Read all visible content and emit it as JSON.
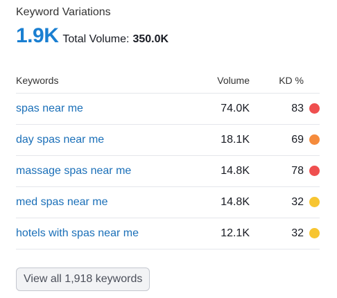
{
  "widget": {
    "title": "Keyword Variations",
    "count": "1.9K",
    "total_label": "Total Volume:",
    "total_value": "350.0K"
  },
  "table": {
    "headers": {
      "keyword": "Keywords",
      "volume": "Volume",
      "kd": "KD %"
    },
    "rows": [
      {
        "keyword": "spas near me",
        "volume": "74.0K",
        "kd": "83",
        "kd_color": "#ef4f4f",
        "kd_level": "very-hard"
      },
      {
        "keyword": "day spas near me",
        "volume": "18.1K",
        "kd": "69",
        "kd_color": "#f58b3c",
        "kd_level": "hard"
      },
      {
        "keyword": "massage spas near me",
        "volume": "14.8K",
        "kd": "78",
        "kd_color": "#ef4f4f",
        "kd_level": "very-hard"
      },
      {
        "keyword": "med spas near me",
        "volume": "14.8K",
        "kd": "32",
        "kd_color": "#f7c531",
        "kd_level": "possible"
      },
      {
        "keyword": "hotels with spas near me",
        "volume": "12.1K",
        "kd": "32",
        "kd_color": "#f7c531",
        "kd_level": "possible"
      }
    ]
  },
  "view_all": {
    "label": "View all 1,918 keywords"
  },
  "colors": {
    "accent": "#1a7fd1",
    "link": "#1a6fb8"
  }
}
